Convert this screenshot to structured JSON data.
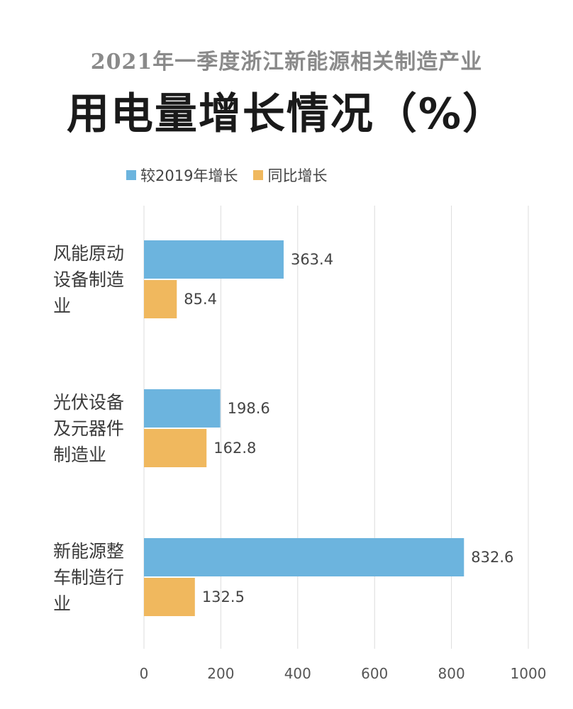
{
  "chart_data": {
    "type": "bar",
    "orientation": "horizontal",
    "subtitle": "2021年一季度浙江新能源相关制造产业",
    "title": "用电量增长情况（%）",
    "categories": [
      [
        "风能原动",
        "设备制造",
        "业"
      ],
      [
        "光伏设备",
        "及元器件",
        "制造业"
      ],
      [
        "新能源整",
        "车制造行",
        "业"
      ]
    ],
    "series": [
      {
        "name": "较2019年增长",
        "color": "#6cb4de",
        "values": [
          363.4,
          198.6,
          832.6
        ]
      },
      {
        "name": "同比增长",
        "color": "#f0b85e",
        "values": [
          85.4,
          162.8,
          132.5
        ]
      }
    ],
    "xlim": [
      0,
      1000
    ],
    "xticks": [
      0,
      200,
      400,
      600,
      800,
      1000
    ],
    "grid": true,
    "legend_position": "top-left",
    "gridline_color": "#dcdcdc"
  }
}
